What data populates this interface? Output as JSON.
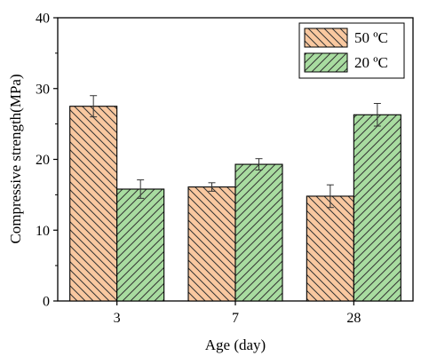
{
  "chart_data": {
    "type": "bar",
    "categories": [
      "3",
      "7",
      "28"
    ],
    "series": [
      {
        "name": "50 ºC",
        "values": [
          27.5,
          16.1,
          14.8
        ],
        "errors": [
          1.5,
          0.6,
          1.6
        ],
        "fill": "#f9c8a0",
        "hatch": "back-diagonal"
      },
      {
        "name": "20 ºC",
        "values": [
          15.8,
          19.3,
          26.3
        ],
        "errors": [
          1.3,
          0.8,
          1.6
        ],
        "fill": "#a8dca0",
        "hatch": "forward-diagonal"
      }
    ],
    "xlabel": "Age (day)",
    "ylabel": "Compressive strength(MPa)",
    "ylim": [
      0,
      40
    ],
    "yticks": [
      0,
      10,
      20,
      30,
      40
    ],
    "legend_position": "top-right",
    "grid": false
  }
}
